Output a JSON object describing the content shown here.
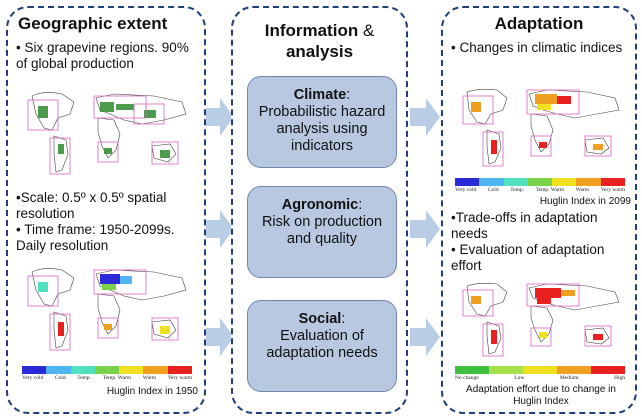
{
  "geographic": {
    "title": "Geographic extent",
    "bullet1": "• Six grapevine regions. 90% of global production",
    "bullet2": "•Scale: 0.5º x 0.5º spatial resolution",
    "bullet3": "• Time frame: 1950-2099s. Daily resolution",
    "legend_labels": [
      "Very cold",
      "Cold",
      "Temp.",
      "Temp. Warm",
      "Warm",
      "Very warm"
    ],
    "caption": "Huglin Index in 1950"
  },
  "information": {
    "title_bold": "Information",
    "title_amp": " &",
    "title_line2": "analysis",
    "boxes": [
      {
        "head": "Climate",
        "suffix": ":",
        "body": "Probabilistic hazard analysis using indicators"
      },
      {
        "head": "Agronomic",
        "suffix": ":",
        "body": "Risk on production and quality"
      },
      {
        "head": "Social",
        "suffix": ":",
        "body": "Evaluation of adaptation needs"
      }
    ]
  },
  "adaptation": {
    "title": "Adaptation",
    "bullet1": "• Changes in climatic indices",
    "legend1_labels": [
      "Very cold",
      "Cold",
      "Temp.",
      "Temp. Warm",
      "Warm",
      "Very warm"
    ],
    "caption1": "Huglin Index in 2099",
    "bullet2": "•Trade-offs in adaptation needs",
    "bullet3": "• Evaluation of adaptation effort",
    "legend2_labels": [
      "No change",
      "Low",
      "Medium",
      "High"
    ],
    "caption2": "Adaptation effort due to change in Huglin Index"
  },
  "colors": {
    "panel_border": "#1f3f7a",
    "box_fill": "#b7c8e0",
    "arrow": "#b9cde4",
    "huglin_scale": [
      "#2a2ad8",
      "#4fb4f0",
      "#4fe0c0",
      "#7ad24a",
      "#f0e020",
      "#f0a020",
      "#e82020"
    ],
    "effort_scale": [
      "#3fbf3f",
      "#a6e04a",
      "#f0e020",
      "#f0a020",
      "#e82020"
    ]
  }
}
